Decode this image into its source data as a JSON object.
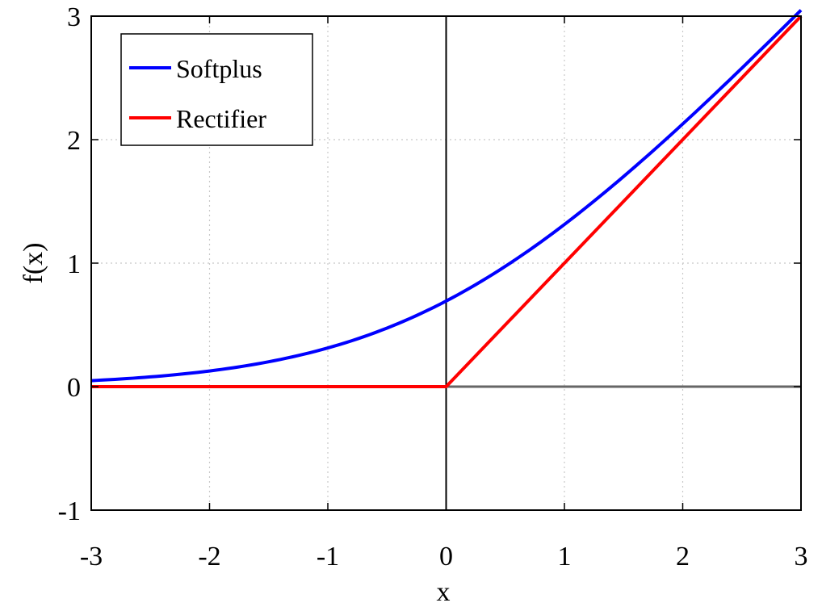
{
  "chart_data": {
    "type": "line",
    "title": "",
    "xlabel": "x",
    "ylabel": "f(x)",
    "xlim": [
      -3,
      3
    ],
    "ylim": [
      -1,
      3
    ],
    "xticks": [
      -3,
      -2,
      -1,
      0,
      1,
      2,
      3
    ],
    "yticks": [
      -1,
      0,
      1,
      2,
      3
    ],
    "xtick_labels": [
      "-3",
      "-2",
      "-1",
      "0",
      "1",
      "2",
      "3"
    ],
    "ytick_labels": [
      "-1",
      "0",
      "1",
      "2",
      "3"
    ],
    "grid": true,
    "zero_lines": true,
    "legend_position": "top-left",
    "series": [
      {
        "name": "Softplus",
        "color": "#0000ff",
        "x": [
          -3,
          -2.5,
          -2,
          -1.5,
          -1,
          -0.5,
          0,
          0.5,
          1,
          1.5,
          2,
          2.5,
          3
        ],
        "y": [
          0.049,
          0.079,
          0.127,
          0.201,
          0.313,
          0.474,
          0.693,
          0.974,
          1.313,
          1.701,
          2.127,
          2.579,
          3.049
        ]
      },
      {
        "name": "Rectifier",
        "color": "#ff0000",
        "x": [
          -3,
          0,
          3
        ],
        "y": [
          0,
          0,
          3
        ]
      }
    ]
  }
}
